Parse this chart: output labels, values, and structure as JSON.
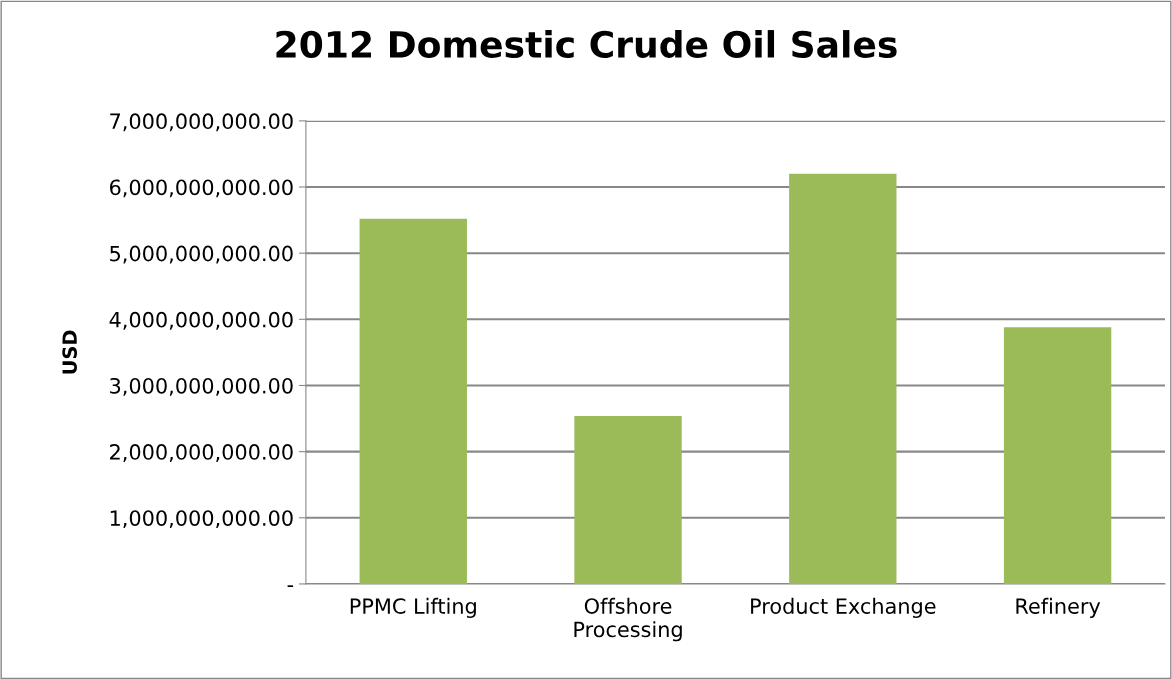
{
  "chart_data": {
    "type": "bar",
    "title": "2012 Domestic Crude Oil Sales",
    "ylabel": "USD",
    "categories": [
      "PPMC Lifting",
      "Offshore Processing",
      "Product Exchange",
      "Refinery"
    ],
    "values": [
      5520000000,
      2540000000,
      6200000000,
      3880000000
    ],
    "color": "#9bbb59",
    "ylim": [
      0,
      7000000000
    ],
    "yticks": [
      {
        "value": 0,
        "label": "-"
      },
      {
        "value": 1000000000,
        "label": "1,000,000,000.00"
      },
      {
        "value": 2000000000,
        "label": "2,000,000,000.00"
      },
      {
        "value": 3000000000,
        "label": "3,000,000,000.00"
      },
      {
        "value": 4000000000,
        "label": "4,000,000,000.00"
      },
      {
        "value": 5000000000,
        "label": "5,000,000,000.00"
      },
      {
        "value": 6000000000,
        "label": "6,000,000,000.00"
      },
      {
        "value": 7000000000,
        "label": "7,000,000,000.00"
      }
    ],
    "grid": "y"
  }
}
